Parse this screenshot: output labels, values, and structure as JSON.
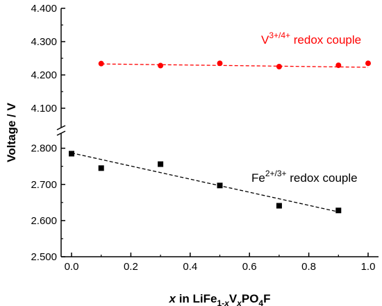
{
  "chart_data": {
    "type": "scatter",
    "xlabel": {
      "var": "x",
      "prefix": " in LiFe",
      "sub1": "1-",
      "sub1_var": "x",
      "mid1": "V",
      "sub2_var": "x",
      "mid2": "PO",
      "sub3": "4",
      "suffix": "F"
    },
    "ylabel": "Voltage / V",
    "xlim": [
      0.0,
      1.0
    ],
    "x_ticks": [
      "0.0",
      "0.2",
      "0.4",
      "0.6",
      "0.8",
      "1.0"
    ],
    "x_tick_values": [
      0.0,
      0.2,
      0.4,
      0.6,
      0.8,
      1.0
    ],
    "y_axis_break": true,
    "upper_panel": {
      "ylim": [
        4.05,
        4.4
      ],
      "y_ticks": [
        "4.100",
        "4.200",
        "4.300",
        "4.400"
      ],
      "y_tick_values": [
        4.1,
        4.2,
        4.3,
        4.4
      ]
    },
    "lower_panel": {
      "ylim": [
        2.5,
        2.83
      ],
      "y_ticks": [
        "2.500",
        "2.600",
        "2.700",
        "2.800"
      ],
      "y_tick_values": [
        2.5,
        2.6,
        2.7,
        2.8
      ]
    },
    "series": [
      {
        "panel": "upper",
        "color": "#ff0000",
        "marker": "circle",
        "x": [
          0.1,
          0.3,
          0.5,
          0.7,
          0.9,
          1.0
        ],
        "y": [
          4.234,
          4.228,
          4.235,
          4.225,
          4.229,
          4.235
        ],
        "fit": {
          "x": [
            0.1,
            1.0
          ],
          "y": [
            4.233,
            4.223
          ]
        },
        "label": {
          "base": "V",
          "sup": "3+/4+",
          "rest": " redox couple"
        }
      },
      {
        "panel": "lower",
        "color": "#000000",
        "marker": "square",
        "x": [
          0.0,
          0.1,
          0.3,
          0.5,
          0.7,
          0.9
        ],
        "y": [
          2.785,
          2.745,
          2.756,
          2.697,
          2.641,
          2.628
        ],
        "fit": {
          "x": [
            0.0,
            0.9
          ],
          "y": [
            2.787,
            2.624
          ]
        },
        "label": {
          "base": "Fe",
          "sup": "2+/3+",
          "rest": " redox couple"
        }
      }
    ]
  }
}
